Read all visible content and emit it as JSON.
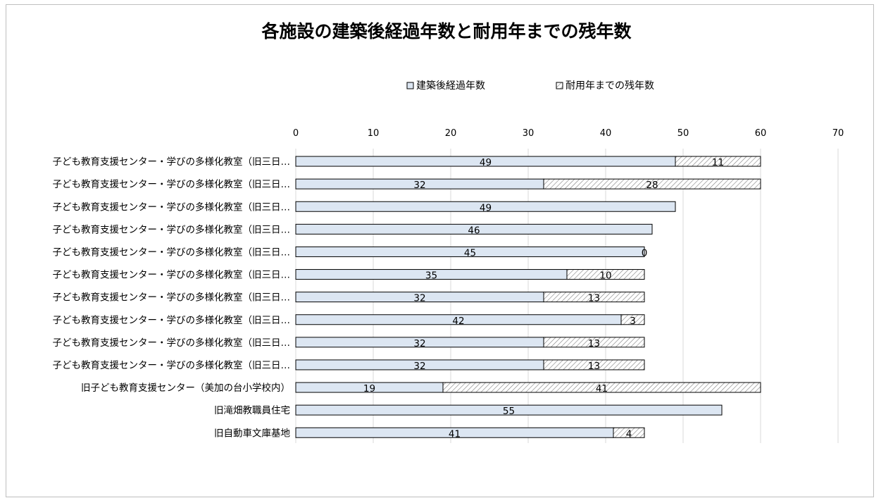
{
  "chart_data": {
    "type": "bar",
    "orientation": "horizontal",
    "stacked": true,
    "title": "各施設の建築後経過年数と耐用年までの残年数",
    "xlim": [
      0,
      70
    ],
    "xticks": [
      "0",
      "10",
      "20",
      "30",
      "40",
      "50",
      "60",
      "70"
    ],
    "grid": true,
    "legend_position": "top",
    "categories": [
      "子ども教育支援センター・学びの多様化教室（旧三日…",
      "子ども教育支援センター・学びの多様化教室（旧三日…",
      "子ども教育支援センター・学びの多様化教室（旧三日…",
      "子ども教育支援センター・学びの多様化教室（旧三日…",
      "子ども教育支援センター・学びの多様化教室（旧三日…",
      "子ども教育支援センター・学びの多様化教室（旧三日…",
      "子ども教育支援センター・学びの多様化教室（旧三日…",
      "子ども教育支援センター・学びの多様化教室（旧三日…",
      "子ども教育支援センター・学びの多様化教室（旧三日…",
      "子ども教育支援センター・学びの多様化教室（旧三日…",
      "旧子ども教育支援センター（美加の台小学校内）",
      "旧滝畑教職員住宅",
      "旧自動車文庫基地"
    ],
    "series": [
      {
        "name": "建築後経過年数",
        "color": "#dce6f2",
        "values": [
          49,
          32,
          49,
          46,
          45,
          35,
          32,
          42,
          32,
          32,
          19,
          55,
          41
        ],
        "labels": [
          "49",
          "32",
          "49",
          "46",
          "45",
          "35",
          "32",
          "42",
          "32",
          "32",
          "19",
          "55",
          "41"
        ]
      },
      {
        "name": "耐用年までの残年数",
        "pattern": "hatch",
        "values": [
          11,
          28,
          null,
          null,
          0,
          10,
          13,
          3,
          13,
          13,
          41,
          null,
          4
        ],
        "labels": [
          "11",
          "28",
          "",
          "",
          "0",
          "10",
          "13",
          "3",
          "13",
          "13",
          "41",
          "",
          "4"
        ]
      }
    ]
  }
}
